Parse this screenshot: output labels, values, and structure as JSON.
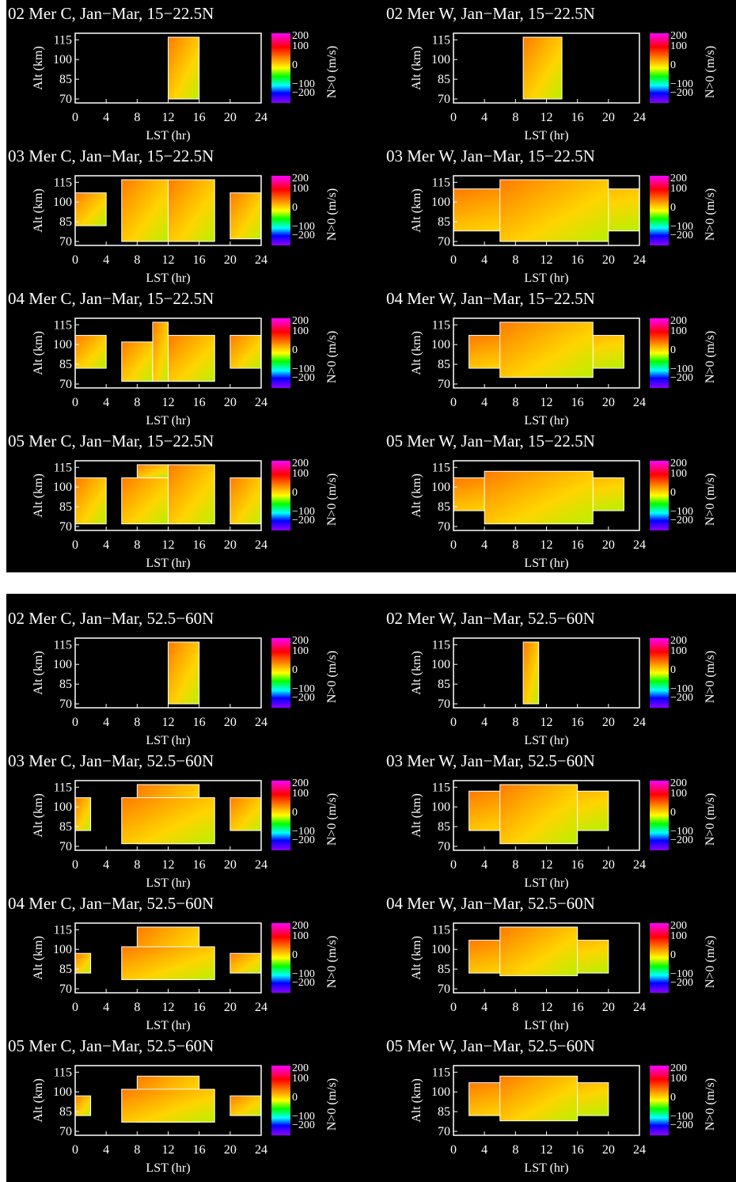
{
  "panels": [
    {
      "title": "02 Mer C, Jan−Mar, 15−22.5N"
    },
    {
      "title": "02 Mer W, Jan−Mar, 15−22.5N"
    },
    {
      "title": "03 Mer C, Jan−Mar, 15−22.5N"
    },
    {
      "title": "03 Mer W, Jan−Mar, 15−22.5N"
    },
    {
      "title": "04 Mer C, Jan−Mar, 15−22.5N"
    },
    {
      "title": "04 Mer W, Jan−Mar, 15−22.5N"
    },
    {
      "title": "05 Mer C, Jan−Mar, 15−22.5N"
    },
    {
      "title": "05 Mer W, Jan−Mar, 15−22.5N"
    },
    {
      "title": "02 Mer C, Jan−Mar, 52.5−60N"
    },
    {
      "title": "02 Mer W, Jan−Mar, 52.5−60N"
    },
    {
      "title": "03 Mer C, Jan−Mar, 52.5−60N"
    },
    {
      "title": "03 Mer W, Jan−Mar, 52.5−60N"
    },
    {
      "title": "04 Mer C, Jan−Mar, 52.5−60N"
    },
    {
      "title": "04 Mer W, Jan−Mar, 52.5−60N"
    },
    {
      "title": "05 Mer C, Jan−Mar, 52.5−60N"
    },
    {
      "title": "05 Mer W, Jan−Mar, 52.5−60N"
    }
  ],
  "axes": {
    "xlabel": "LST (hr)",
    "ylabel": "Alt (km)",
    "colorbar_label": "N>0 (m/s)",
    "xlim": [
      0,
      24
    ],
    "ylim": [
      67,
      120
    ],
    "xticks": [
      0,
      4,
      8,
      12,
      16,
      20,
      24
    ],
    "yticks": [
      115,
      100,
      85,
      70
    ],
    "colorbar_ticks": [
      "200",
      "100",
      "0",
      "−100",
      "−200"
    ]
  }
}
